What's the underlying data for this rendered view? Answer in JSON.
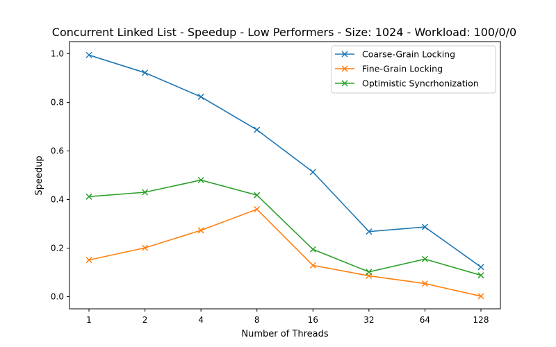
{
  "chart_data": {
    "type": "line",
    "title": "Concurrent Linked List - Speedup - Low Performers - Size: 1024 - Workload: 100/0/0",
    "xlabel": "Number of Threads",
    "ylabel": "Speedup",
    "categories": [
      "1",
      "2",
      "4",
      "8",
      "16",
      "32",
      "64",
      "128"
    ],
    "ylim": [
      -0.05,
      1.05
    ],
    "yticks": [
      "0.0",
      "0.2",
      "0.4",
      "0.6",
      "0.8",
      "1.0"
    ],
    "grid": false,
    "legend_position": "top-right",
    "marker": "x",
    "series": [
      {
        "name": "Coarse-Grain Locking",
        "color": "#1f77b4",
        "values": [
          0.995,
          0.922,
          0.823,
          0.687,
          0.513,
          0.268,
          0.287,
          0.122
        ]
      },
      {
        "name": "Fine-Grain Locking",
        "color": "#ff7f0e",
        "values": [
          0.151,
          0.201,
          0.273,
          0.36,
          0.129,
          0.086,
          0.054,
          0.002
        ]
      },
      {
        "name": "Optimistic Syncrhonization",
        "color": "#2ca02c",
        "values": [
          0.412,
          0.43,
          0.48,
          0.418,
          0.195,
          0.102,
          0.155,
          0.088
        ]
      }
    ]
  }
}
